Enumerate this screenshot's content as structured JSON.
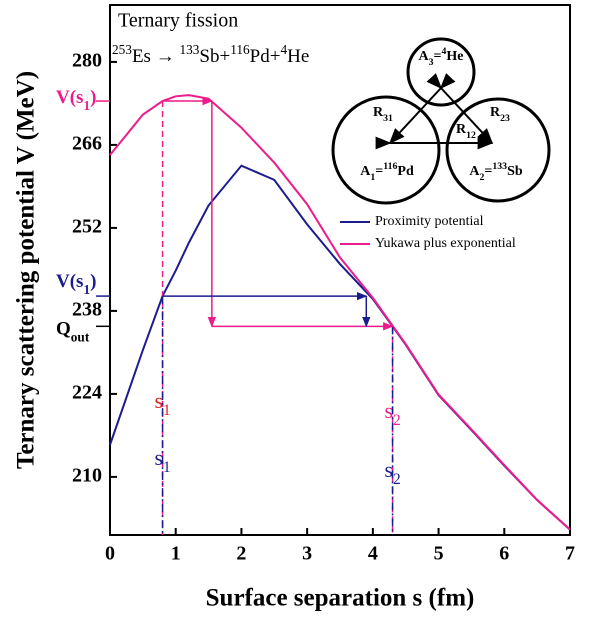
{
  "chart_data": {
    "type": "line",
    "title": "Ternary fission",
    "subtitle": [
      {
        "text": "253",
        "sup": true
      },
      {
        "text": "Es → "
      },
      {
        "text": "133",
        "sup": true
      },
      {
        "text": "Sb+"
      },
      {
        "text": "116",
        "sup": true
      },
      {
        "text": "Pd+"
      },
      {
        "text": "4",
        "sup": true
      },
      {
        "text": "He"
      }
    ],
    "xlabel": "Surface separation s (fm)",
    "ylabel": "Ternary scattering potential V (MeV)",
    "xlim": [
      0,
      7
    ],
    "xticks": [
      0,
      1,
      2,
      3,
      4,
      5,
      6,
      7
    ],
    "ylim": [
      200.2,
      289.6
    ],
    "yticks": [
      210,
      224,
      238,
      252,
      266,
      280
    ],
    "x": [
      0,
      0.5,
      0.8,
      1,
      1.2,
      1.5,
      2,
      2.5,
      3,
      3.5,
      4,
      4.3,
      4.5,
      5,
      5.5,
      6,
      6.5,
      7
    ],
    "series": [
      {
        "name": "Proximity potential",
        "color": "#1c1c8e",
        "values": [
          215.4,
          231.4,
          240.5,
          244.8,
          249.5,
          255.8,
          262.5,
          260.1,
          252.6,
          245.9,
          240.0,
          235.4,
          232.3,
          223.8,
          217.9,
          211.9,
          206.1,
          201.1
        ]
      },
      {
        "name": "Yukawa plus exponential",
        "color": "#ec1c8c",
        "values": [
          264.3,
          271.1,
          273.4,
          274.2,
          274.4,
          273.8,
          268.9,
          263.0,
          256.0,
          247.0,
          240.2,
          235.5,
          232.4,
          223.9,
          218.0,
          212.0,
          206.1,
          201.1
        ]
      }
    ],
    "levels": {
      "s1": 0.8,
      "s2": 4.3,
      "s_turn_yukawa": 1.55,
      "s_turn_proximity": 3.9,
      "v_yukawa": 273.4,
      "v_proximity": 240.5,
      "q_out": 235.4
    },
    "labels": {
      "v_yukawa": [
        {
          "text": "V(s"
        },
        {
          "text": "1",
          "sub": true
        },
        {
          "text": ")"
        }
      ],
      "v_proximity": [
        {
          "text": "V(s"
        },
        {
          "text": "1",
          "sub": true
        },
        {
          "text": ")"
        }
      ],
      "q_out": [
        {
          "text": "Q"
        },
        {
          "text": "out",
          "sub": true
        }
      ],
      "s1_yukawa": [
        {
          "text": "s"
        },
        {
          "text": "1",
          "sub": true
        }
      ],
      "s1_proximity": [
        {
          "text": "s"
        },
        {
          "text": "1",
          "sub": true
        }
      ],
      "s2_yukawa": [
        {
          "text": "s"
        },
        {
          "text": "2",
          "sub": true
        }
      ],
      "s2_proximity": [
        {
          "text": "s"
        },
        {
          "text": "2",
          "sub": true
        }
      ]
    },
    "diagram": {
      "a3": [
        {
          "text": "A"
        },
        {
          "text": "3",
          "sub": true
        },
        {
          "text": "="
        },
        {
          "text": "4",
          "sup": true
        },
        {
          "text": "He"
        }
      ],
      "a1": [
        {
          "text": "A"
        },
        {
          "text": "1",
          "sub": true
        },
        {
          "text": "="
        },
        {
          "text": "116",
          "sup": true
        },
        {
          "text": "Pd"
        }
      ],
      "a2": [
        {
          "text": "A"
        },
        {
          "text": "2",
          "sub": true
        },
        {
          "text": "="
        },
        {
          "text": "133",
          "sup": true
        },
        {
          "text": "Sb"
        }
      ],
      "r31": [
        {
          "text": "R"
        },
        {
          "text": "31",
          "sub": true
        }
      ],
      "r12": [
        {
          "text": "R"
        },
        {
          "text": "12",
          "sub": true
        }
      ],
      "r23": [
        {
          "text": "R"
        },
        {
          "text": "23",
          "sub": true
        }
      ]
    }
  }
}
